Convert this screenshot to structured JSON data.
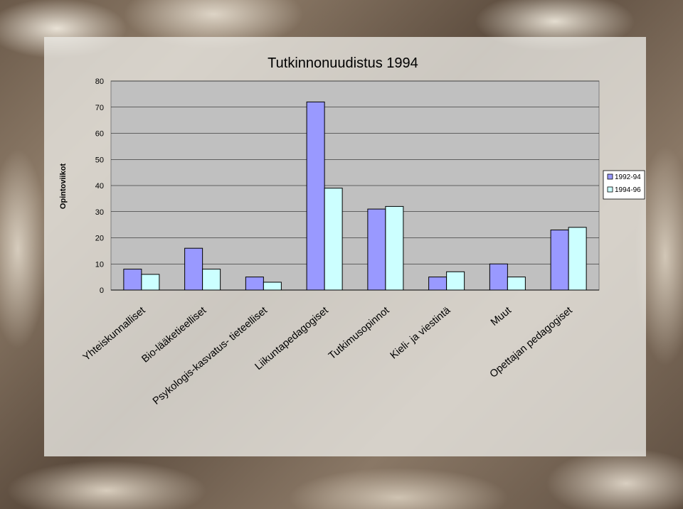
{
  "chart_data": {
    "type": "bar",
    "title": "Tutkinnonuudistus 1994",
    "xlabel": "",
    "ylabel": "Opintoviikot",
    "ylim": [
      0,
      80
    ],
    "yticks": [
      0,
      10,
      20,
      30,
      40,
      50,
      60,
      70,
      80
    ],
    "grid": true,
    "legend_position": "right",
    "categories": [
      "Yhteiskunnalliset",
      "Bio-lääketieelliset",
      "Psykologis-kasvatus- tieteelliset",
      "Liikuntapedagogiset",
      "Tutkimusopinnot",
      "Kieli- ja viestintä",
      "Muut",
      "Opettajan pedagogiset"
    ],
    "series": [
      {
        "name": "1992-94",
        "color": "#9999ff",
        "values": [
          8,
          16,
          5,
          72,
          31,
          5,
          10,
          23
        ]
      },
      {
        "name": "1994-96",
        "color": "#ccffff",
        "values": [
          6,
          8,
          3,
          39,
          32,
          7,
          5,
          24
        ]
      }
    ],
    "plot_background": "#c0c0c0"
  }
}
